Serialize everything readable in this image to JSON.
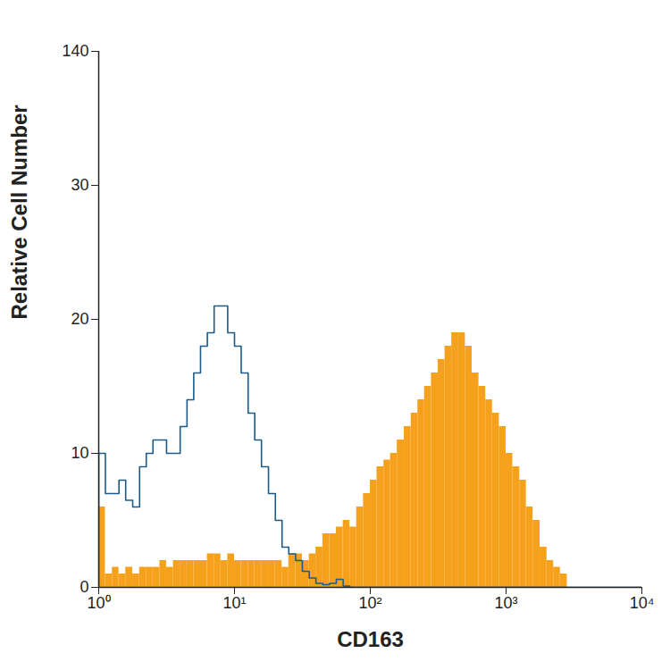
{
  "chart_data": {
    "type": "histogram",
    "x_label": "CD163",
    "y_label": "Relative Cell Number",
    "log": "x",
    "xlim": [
      1,
      10000
    ],
    "xticks": [
      {
        "value": 1,
        "label": "10⁰"
      },
      {
        "value": 10,
        "label": "10¹"
      },
      {
        "value": 100,
        "label": "10²"
      },
      {
        "value": 1000,
        "label": "10³"
      },
      {
        "value": 10000,
        "label": "10⁴"
      }
    ],
    "ylim": [
      0,
      140
    ],
    "yticks": [
      0,
      10,
      20,
      30,
      140
    ],
    "bins": [
      1,
      1.12,
      1.26,
      1.41,
      1.58,
      1.78,
      2,
      2.24,
      2.51,
      2.82,
      3.16,
      3.55,
      3.98,
      4.47,
      5.01,
      5.62,
      6.31,
      7.08,
      7.94,
      8.91,
      10,
      11.2,
      12.6,
      14.1,
      15.8,
      17.8,
      20,
      22.4,
      25.1,
      28.2,
      31.6,
      35.5,
      39.8,
      44.7,
      50.1,
      56.2,
      63.1,
      70.8,
      79.4,
      89.1,
      100,
      112,
      126,
      141,
      158,
      178,
      200,
      224,
      251,
      282,
      316,
      355,
      398,
      447,
      501,
      562,
      631,
      708,
      794,
      891,
      1000,
      1120,
      1260,
      1410,
      1580,
      1780,
      2000,
      2240,
      2510,
      2820,
      3160,
      3550,
      3980,
      4470,
      5010,
      5620,
      6310,
      7080,
      7940,
      8910,
      10000
    ],
    "series": [
      {
        "type": "area",
        "color": "#f5a11c",
        "values": [
          6,
          1,
          1.5,
          1,
          1.5,
          1,
          1.5,
          1.5,
          1.5,
          2,
          1.5,
          2,
          2,
          2,
          2,
          2,
          2.5,
          2.5,
          2,
          2.5,
          2,
          2,
          2,
          2,
          2,
          2,
          2,
          1.5,
          2.5,
          2.5,
          2,
          2.5,
          3,
          4,
          4,
          4.5,
          5,
          4.5,
          6,
          7,
          8,
          9,
          9.5,
          10,
          11,
          12,
          13,
          14,
          15,
          16,
          17,
          18,
          19,
          19,
          18,
          16,
          15,
          14,
          13,
          12,
          10,
          9,
          8,
          6,
          5,
          3,
          2,
          1.5,
          1,
          0,
          0,
          0,
          0,
          0,
          0,
          0,
          0,
          0,
          0,
          0
        ]
      },
      {
        "type": "line",
        "color": "#1c5a87",
        "values": [
          10,
          7,
          7,
          8,
          6.5,
          6,
          9,
          10,
          11,
          11,
          10,
          10,
          12,
          14,
          16,
          18,
          19,
          21,
          21,
          19,
          18,
          16,
          13,
          11,
          9,
          7,
          5,
          3,
          2.5,
          2,
          1.2,
          0.7,
          0.3,
          0.2,
          0.3,
          0.6,
          0.1,
          0,
          0,
          0,
          0,
          0,
          0,
          0,
          0,
          0,
          0,
          0,
          0,
          0,
          0,
          0,
          0,
          0,
          0,
          0,
          0,
          0,
          0,
          0,
          0,
          0,
          0,
          0,
          0,
          0,
          0,
          0,
          0,
          0,
          0,
          0,
          0,
          0,
          0,
          0,
          0,
          0,
          0,
          0
        ]
      }
    ]
  }
}
